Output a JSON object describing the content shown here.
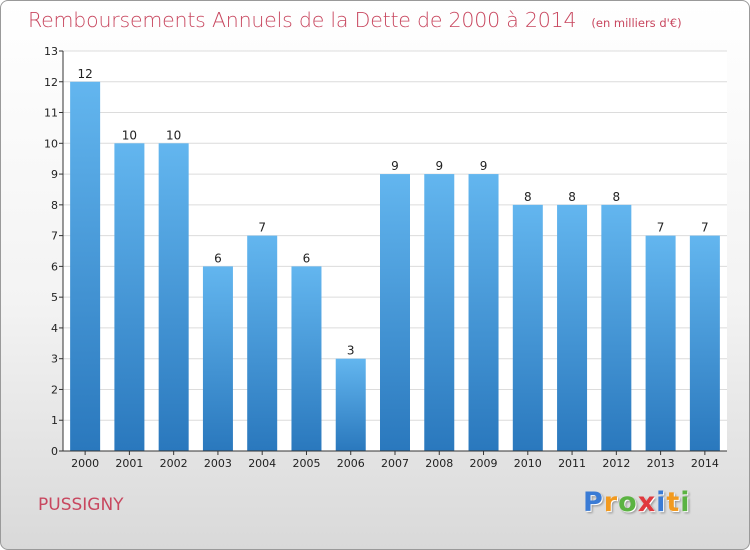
{
  "chart_data": {
    "type": "bar",
    "title": "Remboursements Annuels de la Dette de 2000 à 2014",
    "unit_label": "(en milliers d'€)",
    "categories": [
      "2000",
      "2001",
      "2002",
      "2003",
      "2004",
      "2005",
      "2006",
      "2007",
      "2008",
      "2009",
      "2010",
      "2011",
      "2012",
      "2013",
      "2014"
    ],
    "values": [
      12,
      10,
      10,
      6,
      7,
      6,
      3,
      9,
      9,
      9,
      8,
      8,
      8,
      7,
      7
    ],
    "ylim": [
      0,
      13
    ],
    "yticks": [
      "0",
      "1",
      "2",
      "3",
      "4",
      "5",
      "6",
      "7",
      "8",
      "9",
      "10",
      "11",
      "12",
      "13"
    ],
    "xlabel": "",
    "ylabel": "",
    "grid": true,
    "legend": "none"
  },
  "footer": {
    "commune": "PUSSIGNY",
    "logo_letters": [
      "P",
      "r",
      "o",
      "x",
      "i",
      "t",
      "i"
    ],
    "logo_colors": [
      "#3a7bd5",
      "#f29a1f",
      "#5bb342",
      "#e0393e",
      "#3a7bd5",
      "#f29a1f",
      "#5bb342"
    ]
  },
  "colors": {
    "title": "#c8475f",
    "bar_top": "#63b6ef",
    "bar_bottom": "#2a78bd",
    "grid": "#dcdcdc",
    "axis": "#333333"
  }
}
